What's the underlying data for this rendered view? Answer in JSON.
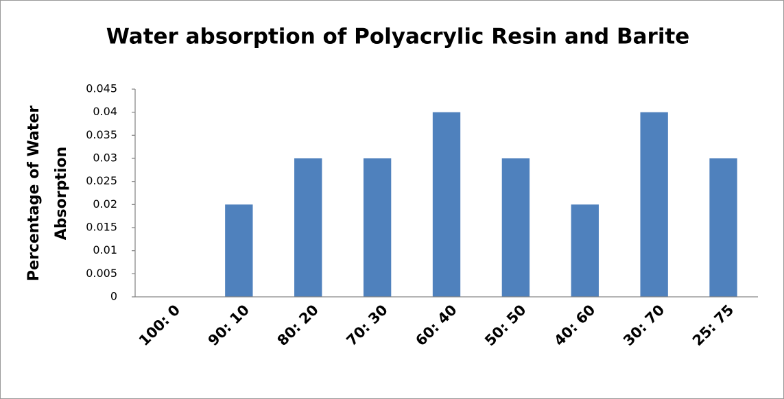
{
  "chart_data": {
    "type": "bar",
    "title": "Water absorption of Polyacrylic Resin and Barite",
    "y_label": [
      "Percentage of Water",
      "Absorption"
    ],
    "categories": [
      "100: 0",
      "90: 10",
      "80: 20",
      "70: 30",
      "60: 40",
      "50: 50",
      "40: 60",
      "30: 70",
      "25: 75"
    ],
    "values": [
      0,
      0.02,
      0.03,
      0.03,
      0.04,
      0.03,
      0.02,
      0.04,
      0.03
    ],
    "color": "#4f81bd",
    "ylim": [
      0,
      0.045
    ],
    "yticks": [
      0,
      0.005,
      0.01,
      0.015,
      0.02,
      0.025,
      0.03,
      0.035,
      0.04,
      0.045
    ],
    "grid": false
  }
}
